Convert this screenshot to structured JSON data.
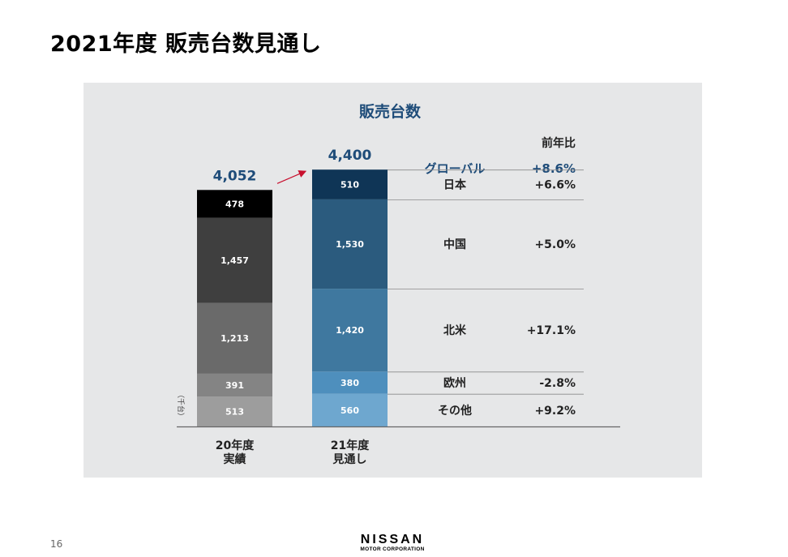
{
  "slide": {
    "title": "2021年度 販売台数見通し",
    "page_number": "16"
  },
  "logo": {
    "brand": "NISSAN",
    "sub": "MOTOR CORPORATION"
  },
  "colors": {
    "panel_bg": "#e6e7e8",
    "accent_blue": "#1e4c79",
    "arrow_red": "#c8102e",
    "fy20": [
      "#000000",
      "#3f3f3f",
      "#6a6a6a",
      "#848484",
      "#9d9d9d"
    ],
    "fy21": [
      "#0f3556",
      "#2b5b7e",
      "#3f789f",
      "#4e8fbd",
      "#6ea7cf"
    ]
  },
  "chart_data": {
    "type": "bar",
    "stacked": true,
    "title": "販売台数",
    "unit_label": "（千台）",
    "categories": [
      [
        "20年度",
        "実績"
      ],
      [
        "21年度",
        "見通し"
      ]
    ],
    "totals": [
      "4,052",
      "4,400"
    ],
    "growth_header": "前年比",
    "series": [
      {
        "name": "日本",
        "values": [
          478,
          510
        ],
        "labels": [
          "478",
          "510"
        ],
        "growth": "+6.6%"
      },
      {
        "name": "中国",
        "values": [
          1457,
          1530
        ],
        "labels": [
          "1,457",
          "1,530"
        ],
        "growth": "+5.0%"
      },
      {
        "name": "北米",
        "values": [
          1213,
          1420
        ],
        "labels": [
          "1,213",
          "1,420"
        ],
        "growth": "+17.1%"
      },
      {
        "name": "欧州",
        "values": [
          391,
          380
        ],
        "labels": [
          "391",
          "380"
        ],
        "growth": "-2.8%"
      },
      {
        "name": "その他",
        "values": [
          513,
          560
        ],
        "labels": [
          "513",
          "560"
        ],
        "growth": "+9.2%"
      }
    ],
    "global": {
      "name": "グローバル",
      "growth": "+8.6%"
    }
  }
}
